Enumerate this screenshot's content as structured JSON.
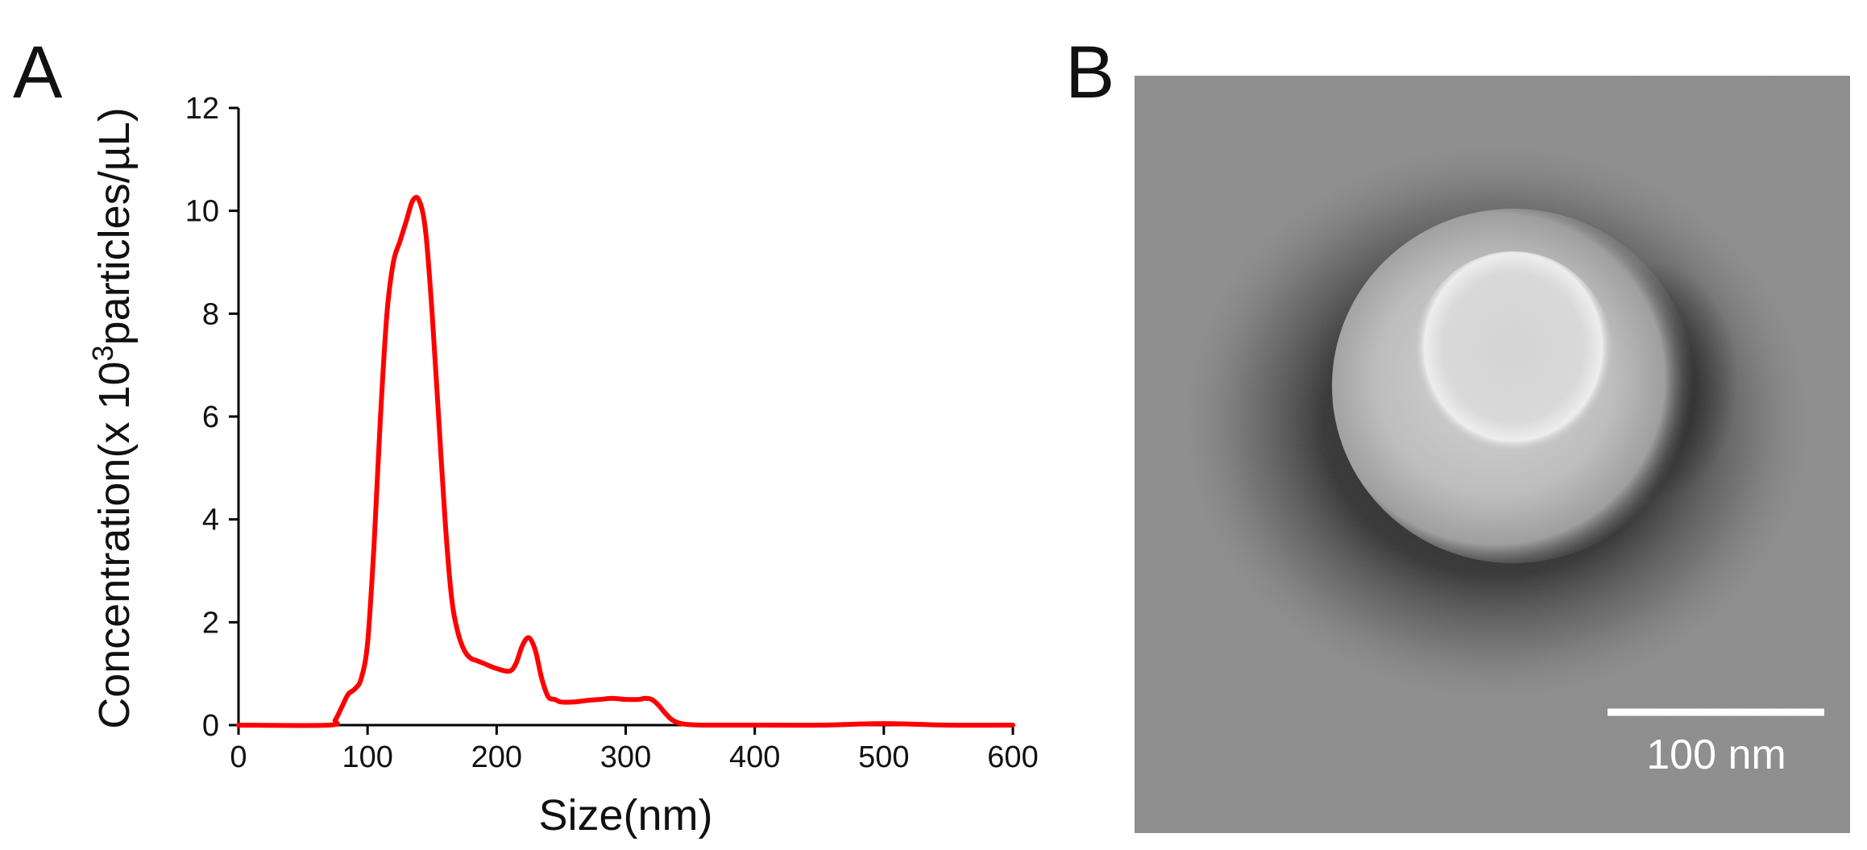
{
  "panels": {
    "a_label": "A",
    "b_label": "B"
  },
  "colors": {
    "series": "#ff0000",
    "axis": "#000000"
  },
  "chart_data": {
    "type": "line",
    "xlabel": "Size(nm)",
    "ylabel_main": "Concentration(x 10",
    "ylabel_sup": "3",
    "ylabel_tail": "particles/µL)",
    "xlim": [
      0,
      600
    ],
    "ylim": [
      0,
      12
    ],
    "x_ticks": [
      0,
      100,
      200,
      300,
      400,
      500,
      600
    ],
    "y_ticks": [
      0,
      2,
      4,
      6,
      8,
      10,
      12
    ],
    "grid": false,
    "series": [
      {
        "color": "#ff0000",
        "x": [
          0,
          70,
          75,
          80,
          85,
          90,
          95,
          100,
          105,
          110,
          115,
          120,
          125,
          130,
          135,
          140,
          145,
          150,
          155,
          160,
          165,
          170,
          175,
          180,
          185,
          190,
          200,
          210,
          215,
          220,
          225,
          230,
          235,
          240,
          245,
          250,
          260,
          270,
          280,
          290,
          300,
          310,
          315,
          320,
          325,
          330,
          335,
          340,
          345,
          350,
          360,
          380,
          400,
          450,
          500,
          550,
          600
        ],
        "y": [
          0,
          0,
          0.1,
          0.35,
          0.6,
          0.7,
          0.9,
          1.6,
          3.5,
          6.0,
          8.0,
          9.0,
          9.4,
          9.8,
          10.2,
          10.2,
          9.6,
          8.0,
          6.0,
          4.0,
          2.5,
          1.8,
          1.45,
          1.3,
          1.25,
          1.2,
          1.1,
          1.05,
          1.2,
          1.55,
          1.7,
          1.45,
          0.9,
          0.55,
          0.5,
          0.45,
          0.45,
          0.48,
          0.5,
          0.52,
          0.5,
          0.5,
          0.52,
          0.5,
          0.4,
          0.25,
          0.12,
          0.05,
          0.02,
          0.01,
          0,
          0,
          0,
          0,
          0.03,
          0,
          0
        ]
      }
    ]
  },
  "micrograph": {
    "scale_bar_label": "100 nm"
  }
}
